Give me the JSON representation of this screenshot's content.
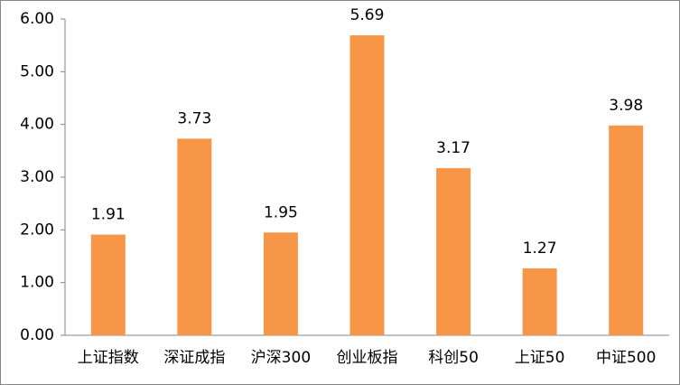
{
  "chart_data": {
    "type": "bar",
    "categories": [
      "上证指数",
      "深证成指",
      "沪深300",
      "创业板指",
      "科创50",
      "上证50",
      "中证500"
    ],
    "values": [
      1.91,
      3.73,
      1.95,
      5.69,
      3.17,
      1.27,
      3.98
    ],
    "color": "#f79646",
    "ylim": [
      0,
      6
    ],
    "yticks": [
      {
        "value": 0,
        "label": "0.00"
      },
      {
        "value": 1,
        "label": "1.00"
      },
      {
        "value": 2,
        "label": "2.00"
      },
      {
        "value": 3,
        "label": "3.00"
      },
      {
        "value": 4,
        "label": "4.00"
      },
      {
        "value": 5,
        "label": "5.00"
      },
      {
        "value": 6,
        "label": "6.00"
      }
    ],
    "grid": false
  }
}
